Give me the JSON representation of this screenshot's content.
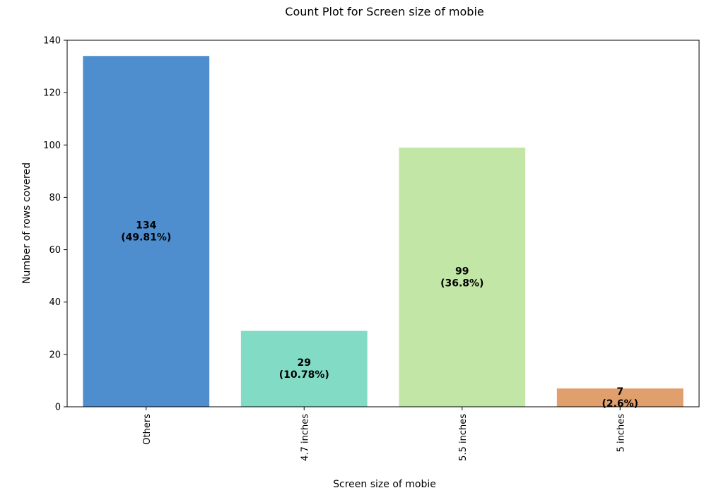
{
  "chart_data": {
    "type": "bar",
    "title": "Count Plot for Screen size of mobie",
    "xlabel": "Screen size of mobie",
    "ylabel": "Number of rows covered",
    "categories": [
      "Others",
      "4.7 inches",
      "5.5 inches",
      "5 inches"
    ],
    "values": [
      134,
      29,
      99,
      7
    ],
    "bar_labels": [
      [
        "134",
        "(49.81%)"
      ],
      [
        "29",
        "(10.78%)"
      ],
      [
        "99",
        "(36.8%)"
      ],
      [
        "7",
        "(2.6%)"
      ]
    ],
    "colors": [
      "#4e8ecf",
      "#82dbc4",
      "#c2e6a6",
      "#e09f6c"
    ],
    "ylim": [
      0,
      140
    ],
    "yticks": [
      0,
      20,
      40,
      60,
      80,
      100,
      120,
      140
    ],
    "grid": false,
    "legend": "none"
  }
}
